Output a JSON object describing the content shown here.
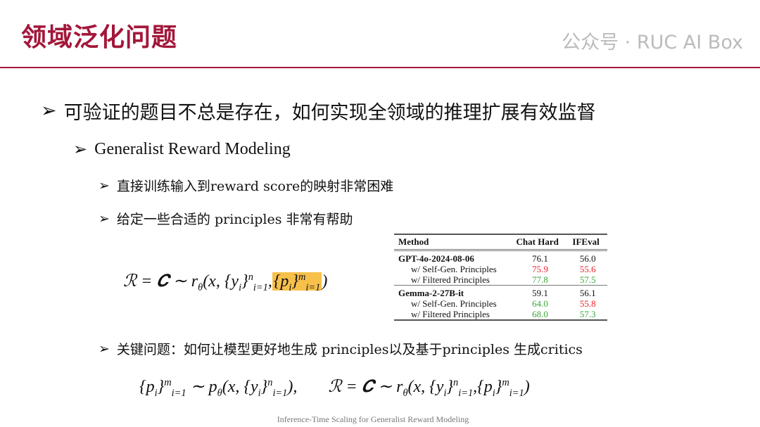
{
  "title": "领域泛化问题",
  "bullets": {
    "b1": "可验证的题目不总是存在，如何实现全领域的推理扩展有效监督",
    "b2": "Generalist Reward Modeling",
    "b3": "直接训练输入到reward score的映射非常困难",
    "b4": "给定一些合适的 principles 非常有帮助",
    "b5": "关键问题：如何让模型更好地生成 principles以及基于principles 生成critics"
  },
  "formula1": {
    "lhs": "ℛ = 𝑪 ∼ r",
    "theta": "θ",
    "args": "(x, {y",
    "i": "i",
    "close": "}",
    "n": "n",
    "i1": "i=1",
    ",": ",",
    "p": "{p",
    "m": "m",
    "end": ")"
  },
  "formula2": {
    "left": "{p",
    "i": "i",
    "close": "}",
    "m": "m",
    "i1": "i=1",
    "sim": " ∼ p",
    "theta": "θ",
    "args": "(x, {y",
    "n": "n",
    "end": "),",
    "right": "ℛ = 𝑪 ∼ r",
    "end2": ")"
  },
  "table": {
    "headers": [
      "Method",
      "Chat Hard",
      "IFEval"
    ],
    "rows": [
      {
        "method": "GPT-4o-2024-08-06",
        "chat": "76.1",
        "ifeval": "56.0",
        "bold": true,
        "chat_color": "",
        "if_color": ""
      },
      {
        "method": "w/ Self-Gen. Principles",
        "chat": "75.9",
        "ifeval": "55.6",
        "chat_color": "red",
        "if_color": "red"
      },
      {
        "method": "w/ Filtered Principles",
        "chat": "77.8",
        "ifeval": "57.5",
        "chat_color": "green",
        "if_color": "green"
      },
      {
        "method": "Gemma-2-27B-it",
        "chat": "59.1",
        "ifeval": "56.1",
        "bold": true,
        "chat_color": "",
        "if_color": ""
      },
      {
        "method": "w/ Self-Gen. Principles",
        "chat": "64.0",
        "ifeval": "55.8",
        "chat_color": "green",
        "if_color": "red"
      },
      {
        "method": "w/ Filtered Principles",
        "chat": "68.0",
        "ifeval": "57.3",
        "chat_color": "green",
        "if_color": "green"
      }
    ]
  },
  "colors": {
    "accent": "#a3173a",
    "highlight": "#f7c04a",
    "red": "#e8202a",
    "green": "#3aa83a"
  },
  "footer": "Inference-Time Scaling for Generalist Reward Modeling",
  "watermark": "公众号 · RUC AI Box"
}
